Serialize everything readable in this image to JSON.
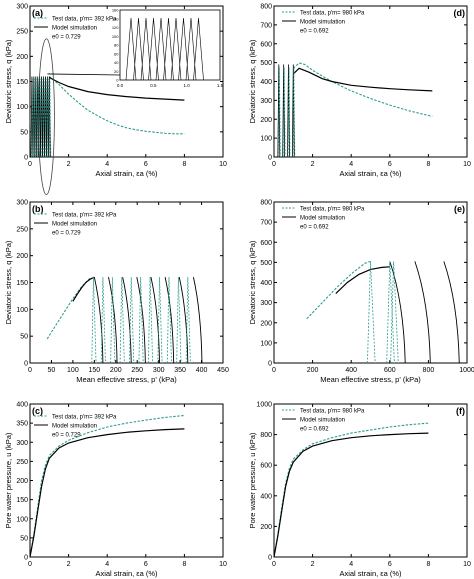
{
  "chart_data": [
    {
      "panel": "(a)",
      "type": "line",
      "xlabel": "Axial strain, εa (%)",
      "ylabel": "Deviatoric stress, q (kPa)",
      "xlim": [
        0,
        10
      ],
      "ylim": [
        0,
        300
      ],
      "xticks": [
        "0",
        "2",
        "4",
        "6",
        "8",
        "10"
      ],
      "yticks": [
        "0",
        "50",
        "100",
        "150",
        "200",
        "250",
        "300"
      ],
      "legend": [
        "Test data, p'm= 392 kPa",
        "Model simulation",
        "e0 = 0.729"
      ],
      "inset": {
        "xticks": [
          "0.0",
          "0.5",
          "1.0",
          "1.5"
        ],
        "yticks": [
          "0",
          "20",
          "40",
          "60",
          "80",
          "100",
          "120",
          "140",
          "160"
        ]
      },
      "series": [
        {
          "name": "Test data",
          "style": "dashed",
          "color": "#2a9d8f",
          "x": [
            1.0,
            1.5,
            2,
            2.5,
            3,
            3.5,
            4,
            4.5,
            5,
            5.5,
            6,
            6.5,
            7,
            7.5,
            8
          ],
          "y": [
            160,
            144,
            125,
            108,
            93,
            82,
            72,
            64,
            58,
            54,
            51,
            49,
            47,
            46,
            46
          ]
        },
        {
          "name": "Model simulation",
          "style": "solid",
          "color": "#000000",
          "x": [
            1.0,
            1.5,
            2,
            3,
            4,
            5,
            6,
            7,
            8
          ],
          "y": [
            158,
            148,
            140,
            130,
            124,
            120,
            117,
            115,
            113
          ]
        }
      ]
    },
    {
      "panel": "(d)",
      "type": "line",
      "xlabel": "Axial strain, εa (%)",
      "ylabel": "Deviatoric stress, q (kPa)",
      "xlim": [
        0,
        10
      ],
      "ylim": [
        0,
        800
      ],
      "xticks": [
        "0",
        "2",
        "4",
        "6",
        "8",
        "10"
      ],
      "yticks": [
        "0",
        "100",
        "200",
        "300",
        "400",
        "500",
        "600",
        "700",
        "800"
      ],
      "legend": [
        "Test data, p'm= 980 kPa",
        "Model simulation",
        "e0 = 0.692"
      ],
      "series": [
        {
          "name": "Test data",
          "style": "dashed",
          "color": "#2a9d8f",
          "x": [
            1.0,
            1.3,
            1.6,
            2,
            2.5,
            3,
            4,
            5,
            6,
            7,
            8.2
          ],
          "y": [
            470,
            498,
            490,
            460,
            428,
            400,
            350,
            310,
            275,
            245,
            215
          ]
        },
        {
          "name": "Model simulation",
          "style": "solid",
          "color": "#000000",
          "x": [
            1.0,
            1.3,
            1.8,
            2.5,
            3,
            4,
            5,
            6,
            7,
            8.2
          ],
          "y": [
            440,
            470,
            450,
            415,
            400,
            380,
            370,
            362,
            356,
            350
          ]
        }
      ]
    },
    {
      "panel": "(b)",
      "type": "line",
      "xlabel": "Mean effective stress, p' (kPa)",
      "ylabel": "Deviatoric stress, q (kPa)",
      "xlim": [
        0,
        450
      ],
      "ylim": [
        0,
        300
      ],
      "xticks": [
        "0",
        "50",
        "100",
        "150",
        "200",
        "250",
        "300",
        "350",
        "400",
        "450"
      ],
      "yticks": [
        "0",
        "50",
        "100",
        "150",
        "200",
        "250",
        "300"
      ],
      "legend": [
        "Test data, p'm= 392 kPa",
        "Model simulation",
        "e0 = 0.729"
      ],
      "series": [
        {
          "name": "Test data",
          "style": "dashed",
          "color": "#2a9d8f",
          "x": [
            40,
            60,
            80,
            100,
            120,
            140
          ],
          "y": [
            45,
            70,
            95,
            120,
            142,
            158
          ]
        },
        {
          "name": "Model simulation",
          "style": "solid",
          "color": "#000000",
          "x": [
            100,
            110,
            120,
            130,
            140,
            150
          ],
          "y": [
            115,
            128,
            140,
            150,
            156,
            160
          ]
        }
      ],
      "model_cycle_peaks_p": [
        150,
        183,
        216,
        249,
        282,
        315,
        348,
        381
      ],
      "test_cycle_peaks_p": [
        148,
        170,
        192,
        214,
        236,
        258,
        280,
        302,
        324,
        346,
        368
      ]
    },
    {
      "panel": "(e)",
      "type": "line",
      "xlabel": "Mean effective stress, p' (kPa)",
      "ylabel": "Deviatoric stress, q (kPa)",
      "xlim": [
        0,
        1000
      ],
      "ylim": [
        0,
        800
      ],
      "xticks": [
        "0",
        "200",
        "400",
        "600",
        "800",
        "1000"
      ],
      "yticks": [
        "0",
        "100",
        "200",
        "300",
        "400",
        "500",
        "600",
        "700",
        "800"
      ],
      "legend": [
        "Test data, p'm= 980 kPa",
        "Model simulation",
        "e0 = 0.692"
      ],
      "series": [
        {
          "name": "Test data",
          "style": "dashed",
          "color": "#2a9d8f",
          "x": [
            170,
            250,
            330,
            410,
            470,
            500
          ],
          "y": [
            220,
            300,
            380,
            450,
            495,
            505
          ]
        },
        {
          "name": "Model simulation",
          "style": "solid",
          "color": "#000000",
          "x": [
            320,
            380,
            440,
            500,
            560,
            600
          ],
          "y": [
            345,
            400,
            440,
            465,
            475,
            478
          ]
        }
      ],
      "model_cycle_peaks_p": [
        600,
        730,
        880
      ],
      "test_cycle_peaks_p": [
        500,
        600,
        620
      ]
    },
    {
      "panel": "(c)",
      "type": "line",
      "xlabel": "Axial strain, εa (%)",
      "ylabel": "Pore water pressure, u (kPa)",
      "xlim": [
        0,
        10
      ],
      "ylim": [
        0,
        400
      ],
      "xticks": [
        "0",
        "2",
        "4",
        "6",
        "8",
        "10"
      ],
      "yticks": [
        "0",
        "50",
        "100",
        "150",
        "200",
        "250",
        "300",
        "350",
        "400"
      ],
      "legend": [
        "Test data, p'm= 392 kPa",
        "Model simulation",
        "e0 = 0.729"
      ],
      "series": [
        {
          "name": "Test data",
          "style": "dashed",
          "color": "#2a9d8f",
          "x": [
            0,
            0.2,
            0.4,
            0.6,
            0.8,
            1,
            1.5,
            2,
            3,
            4,
            5,
            6,
            7,
            8
          ],
          "y": [
            0,
            60,
            130,
            200,
            240,
            265,
            290,
            305,
            325,
            340,
            350,
            358,
            365,
            370
          ]
        },
        {
          "name": "Model simulation",
          "style": "solid",
          "color": "#000000",
          "x": [
            0,
            0.2,
            0.4,
            0.6,
            0.8,
            1,
            1.5,
            2,
            3,
            4,
            5,
            6,
            7,
            8
          ],
          "y": [
            0,
            55,
            120,
            185,
            230,
            258,
            285,
            298,
            312,
            320,
            326,
            330,
            333,
            335
          ]
        }
      ]
    },
    {
      "panel": "(f)",
      "type": "line",
      "xlabel": "Axial strain, εa (%)",
      "ylabel": "Pore water pressure, u (kPa)",
      "xlim": [
        0,
        10
      ],
      "ylim": [
        0,
        1000
      ],
      "xticks": [
        "0",
        "2",
        "4",
        "6",
        "8",
        "10"
      ],
      "yticks": [
        "0",
        "200",
        "400",
        "600",
        "800",
        "1000"
      ],
      "legend": [
        "Test data, p'm= 980 kPa",
        "Model simulation",
        "e0 = 0.692"
      ],
      "series": [
        {
          "name": "Test data",
          "style": "dashed",
          "color": "#2a9d8f",
          "x": [
            0,
            0.2,
            0.4,
            0.6,
            0.8,
            1,
            1.5,
            2,
            3,
            4,
            5,
            6,
            7,
            8
          ],
          "y": [
            0,
            150,
            320,
            480,
            580,
            640,
            700,
            740,
            780,
            810,
            830,
            850,
            865,
            875
          ]
        },
        {
          "name": "Model simulation",
          "style": "solid",
          "color": "#000000",
          "x": [
            0,
            0.2,
            0.4,
            0.6,
            0.8,
            1,
            1.5,
            2,
            3,
            4,
            5,
            6,
            7,
            8
          ],
          "y": [
            0,
            140,
            300,
            460,
            560,
            620,
            690,
            725,
            760,
            780,
            792,
            800,
            806,
            810
          ]
        }
      ]
    }
  ]
}
